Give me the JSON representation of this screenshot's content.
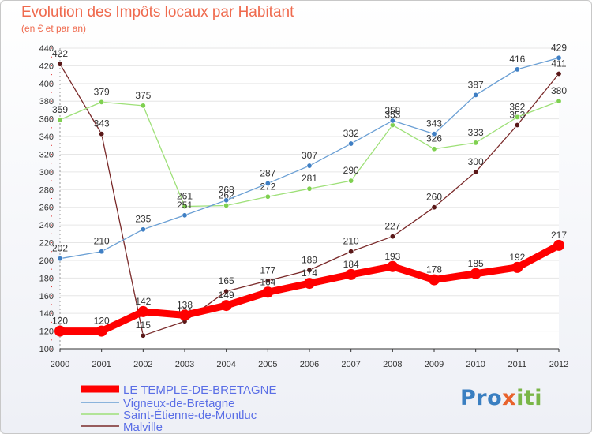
{
  "title": "Evolution des Impôts locaux par Habitant",
  "subtitle": "(en € et par an)",
  "logo": {
    "part1": "Pro",
    "part2": "x",
    "part3": "iti"
  },
  "chart_data": {
    "type": "line",
    "title": "Evolution des Impôts locaux par Habitant",
    "subtitle": "(en € et par an)",
    "xlabel": "",
    "ylabel": "",
    "x": [
      2000,
      2001,
      2002,
      2003,
      2004,
      2005,
      2006,
      2007,
      2008,
      2009,
      2010,
      2011,
      2012
    ],
    "ylim": [
      100,
      440
    ],
    "y_ticks": [
      100,
      120,
      140,
      160,
      180,
      200,
      220,
      240,
      260,
      280,
      300,
      320,
      340,
      360,
      380,
      400,
      420,
      440
    ],
    "grid": "horizontal",
    "legend_position": "bottom-left",
    "series": [
      {
        "name": "LE TEMPLE-DE-BRETAGNE",
        "color": "#ff0000",
        "values": [
          120,
          120,
          142,
          138,
          149,
          164,
          174,
          184,
          193,
          178,
          185,
          192,
          217
        ],
        "labels": [
          "120",
          "120",
          "142",
          "138",
          "149",
          "164",
          "174",
          "184",
          "193",
          "178",
          "185",
          "192",
          "217"
        ]
      },
      {
        "name": "Vigneux-de-Bretagne",
        "color": "#6a9fd4",
        "values": [
          202,
          210,
          235,
          251,
          268,
          287,
          307,
          332,
          358,
          343,
          387,
          416,
          429
        ],
        "labels": [
          "202",
          "210",
          "235",
          "251",
          "268",
          "287",
          "307",
          "332",
          "358",
          "343",
          "387",
          "416",
          "429"
        ]
      },
      {
        "name": "Saint-Étienne-de-Montluc",
        "color": "#9ee078",
        "values": [
          359,
          379,
          375,
          261,
          262,
          272,
          281,
          290,
          353,
          326,
          333,
          362,
          380
        ],
        "labels": [
          "359",
          "379",
          "375",
          "261",
          "262",
          "272",
          "281",
          "290",
          "353",
          "326",
          "333",
          "362",
          "380"
        ]
      },
      {
        "name": "Malville",
        "color": "#7a2a2a",
        "values": [
          422,
          343,
          115,
          131,
          165,
          177,
          189,
          210,
          227,
          260,
          300,
          353,
          411
        ],
        "labels": [
          "422",
          "343",
          "115",
          "131",
          "165",
          "177",
          "189",
          "210",
          "227",
          "260",
          "300",
          "353",
          "411"
        ]
      }
    ]
  }
}
